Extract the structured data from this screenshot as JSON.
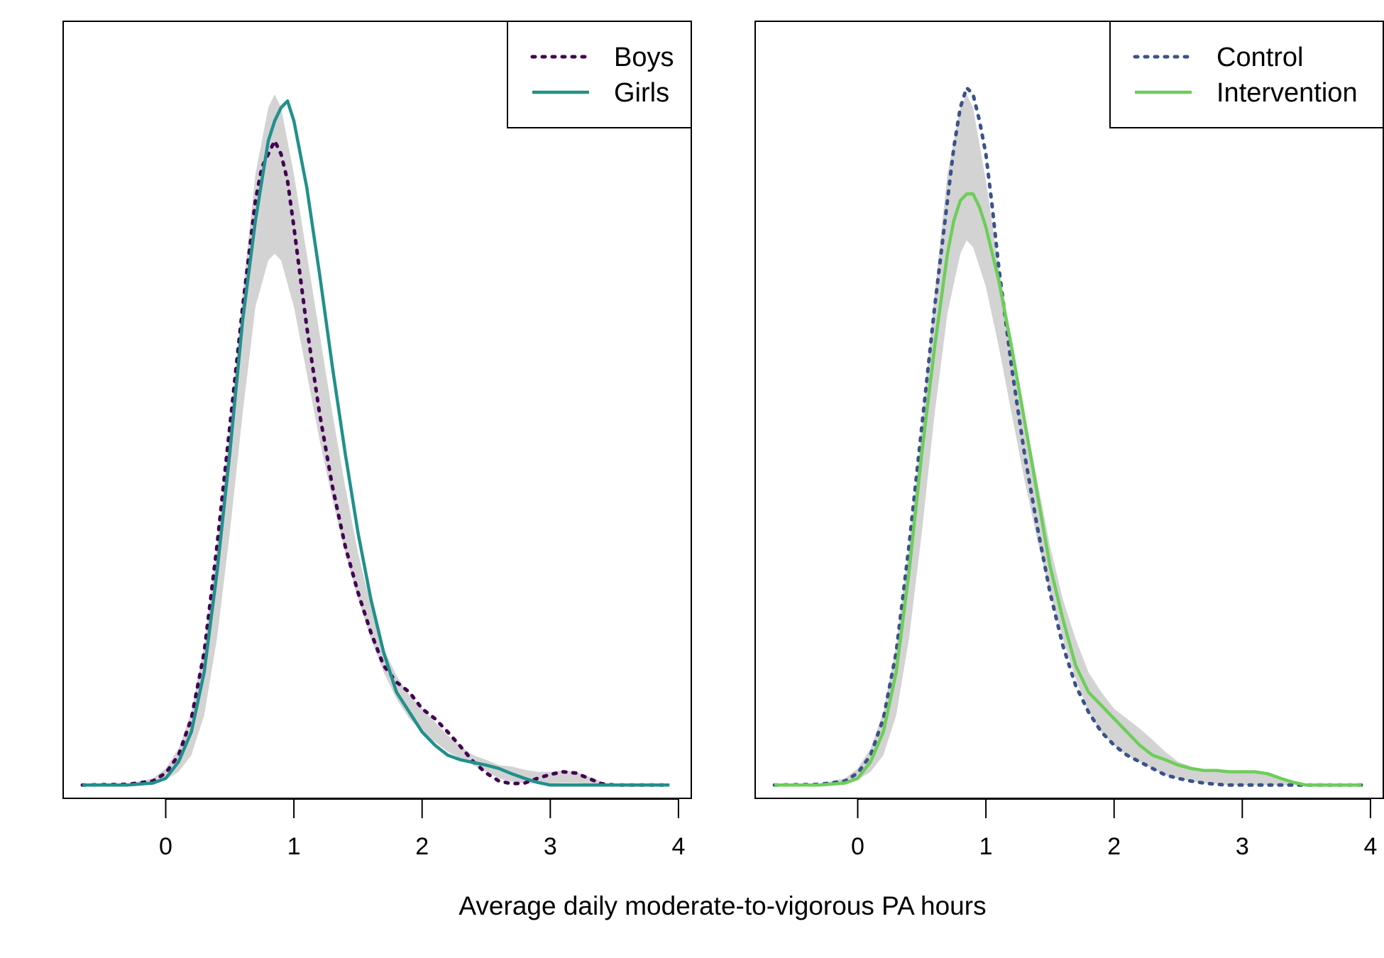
{
  "xlabel": "Average daily moderate-to-vigorous PA hours",
  "chart_data": [
    {
      "type": "line",
      "xlim": [
        -0.8,
        4.1
      ],
      "ylim": [
        -0.02,
        1.15
      ],
      "x_ticks": [
        "0",
        "1",
        "2",
        "3",
        "4"
      ],
      "legend_position": "top-right",
      "band": {
        "fill": "#d3d3d3",
        "x": [
          -0.65,
          -0.3,
          -0.1,
          0.0,
          0.1,
          0.2,
          0.3,
          0.4,
          0.5,
          0.6,
          0.7,
          0.8,
          0.85,
          0.9,
          1.0,
          1.1,
          1.2,
          1.3,
          1.4,
          1.5,
          1.6,
          1.7,
          1.8,
          1.9,
          2.0,
          2.1,
          2.2,
          2.3,
          2.4,
          2.5,
          2.6,
          2.7,
          2.8,
          2.9,
          3.0,
          3.1,
          3.2,
          3.3,
          3.4,
          3.5,
          3.93
        ],
        "lower": [
          0.0,
          0.0,
          0.002,
          0.008,
          0.02,
          0.045,
          0.105,
          0.22,
          0.38,
          0.56,
          0.72,
          0.79,
          0.8,
          0.79,
          0.72,
          0.62,
          0.52,
          0.43,
          0.35,
          0.28,
          0.22,
          0.17,
          0.13,
          0.1,
          0.08,
          0.065,
          0.05,
          0.04,
          0.03,
          0.02,
          0.01,
          0.005,
          0.003,
          0.002,
          0.002,
          0.003,
          0.003,
          0.002,
          0.0,
          0.0,
          0.0
        ],
        "upper": [
          0.0,
          0.002,
          0.01,
          0.025,
          0.055,
          0.11,
          0.21,
          0.36,
          0.54,
          0.74,
          0.92,
          1.02,
          1.04,
          1.02,
          0.92,
          0.8,
          0.68,
          0.56,
          0.45,
          0.35,
          0.27,
          0.205,
          0.165,
          0.135,
          0.115,
          0.095,
          0.075,
          0.058,
          0.045,
          0.038,
          0.03,
          0.028,
          0.023,
          0.02,
          0.02,
          0.022,
          0.02,
          0.013,
          0.005,
          0.0,
          0.0
        ]
      },
      "series": [
        {
          "name": "Boys",
          "color": "#440154",
          "style": "dotted",
          "x": [
            -0.65,
            -0.3,
            -0.1,
            0.0,
            0.1,
            0.2,
            0.3,
            0.4,
            0.5,
            0.6,
            0.7,
            0.75,
            0.8,
            0.85,
            0.9,
            0.95,
            1.0,
            1.1,
            1.2,
            1.3,
            1.4,
            1.5,
            1.6,
            1.7,
            1.8,
            1.9,
            2.0,
            2.1,
            2.2,
            2.3,
            2.4,
            2.5,
            2.6,
            2.7,
            2.8,
            2.9,
            3.0,
            3.1,
            3.2,
            3.3,
            3.4,
            3.5,
            3.93
          ],
          "y": [
            0.0,
            0.001,
            0.006,
            0.018,
            0.045,
            0.1,
            0.2,
            0.36,
            0.54,
            0.72,
            0.88,
            0.93,
            0.95,
            0.97,
            0.95,
            0.91,
            0.84,
            0.69,
            0.56,
            0.45,
            0.36,
            0.29,
            0.23,
            0.18,
            0.155,
            0.14,
            0.115,
            0.1,
            0.08,
            0.058,
            0.035,
            0.018,
            0.006,
            0.002,
            0.003,
            0.01,
            0.016,
            0.02,
            0.018,
            0.01,
            0.002,
            0.0,
            0.0
          ]
        },
        {
          "name": "Girls",
          "color": "#21908C",
          "style": "solid",
          "x": [
            -0.65,
            -0.3,
            -0.1,
            0.0,
            0.1,
            0.2,
            0.3,
            0.4,
            0.5,
            0.6,
            0.7,
            0.75,
            0.8,
            0.85,
            0.9,
            0.95,
            1.0,
            1.1,
            1.2,
            1.3,
            1.4,
            1.5,
            1.6,
            1.7,
            1.8,
            1.9,
            2.0,
            2.1,
            2.2,
            2.3,
            2.4,
            2.5,
            2.6,
            2.7,
            2.8,
            2.9,
            3.0,
            3.1,
            3.2,
            3.93
          ],
          "y": [
            0.0,
            0.0,
            0.003,
            0.01,
            0.035,
            0.08,
            0.17,
            0.32,
            0.5,
            0.7,
            0.85,
            0.91,
            0.97,
            1.0,
            1.02,
            1.03,
            1.0,
            0.9,
            0.77,
            0.63,
            0.5,
            0.38,
            0.28,
            0.2,
            0.14,
            0.11,
            0.08,
            0.06,
            0.045,
            0.038,
            0.034,
            0.03,
            0.025,
            0.017,
            0.01,
            0.004,
            0.0,
            0.0,
            0.0,
            0.0
          ]
        }
      ]
    },
    {
      "type": "line",
      "xlim": [
        -0.8,
        4.1
      ],
      "ylim": [
        -0.02,
        1.15
      ],
      "x_ticks": [
        "0",
        "1",
        "2",
        "3",
        "4"
      ],
      "legend_position": "top-right",
      "band": {
        "fill": "#d3d3d3",
        "x": [
          -0.65,
          -0.3,
          -0.1,
          0.0,
          0.1,
          0.2,
          0.3,
          0.4,
          0.5,
          0.6,
          0.7,
          0.8,
          0.85,
          0.9,
          1.0,
          1.1,
          1.2,
          1.3,
          1.4,
          1.5,
          1.6,
          1.7,
          1.8,
          1.9,
          2.0,
          2.1,
          2.2,
          2.3,
          2.4,
          2.5,
          2.6,
          2.7,
          2.8,
          2.9,
          3.0,
          3.1,
          3.2,
          3.3,
          3.4,
          3.5,
          3.93
        ],
        "lower": [
          0.0,
          0.0,
          0.002,
          0.008,
          0.02,
          0.045,
          0.105,
          0.22,
          0.38,
          0.56,
          0.71,
          0.8,
          0.82,
          0.81,
          0.75,
          0.66,
          0.56,
          0.46,
          0.37,
          0.29,
          0.22,
          0.16,
          0.11,
          0.08,
          0.06,
          0.045,
          0.035,
          0.025,
          0.015,
          0.01,
          0.006,
          0.003,
          0.002,
          0.0,
          0.0,
          0.0,
          0.0,
          0.0,
          0.0,
          0.0,
          0.0
        ],
        "upper": [
          0.0,
          0.002,
          0.01,
          0.025,
          0.055,
          0.11,
          0.21,
          0.36,
          0.54,
          0.74,
          0.92,
          1.02,
          1.04,
          1.02,
          0.91,
          0.78,
          0.67,
          0.56,
          0.46,
          0.36,
          0.28,
          0.22,
          0.17,
          0.14,
          0.115,
          0.1,
          0.085,
          0.068,
          0.05,
          0.035,
          0.028,
          0.022,
          0.02,
          0.02,
          0.02,
          0.02,
          0.018,
          0.01,
          0.004,
          0.0,
          0.0
        ]
      },
      "series": [
        {
          "name": "Control",
          "color": "#3B528B",
          "style": "dotted",
          "x": [
            -0.65,
            -0.3,
            -0.1,
            0.0,
            0.1,
            0.2,
            0.3,
            0.4,
            0.5,
            0.6,
            0.7,
            0.75,
            0.8,
            0.85,
            0.9,
            0.95,
            1.0,
            1.05,
            1.1,
            1.2,
            1.3,
            1.4,
            1.5,
            1.6,
            1.7,
            1.8,
            1.9,
            2.0,
            2.1,
            2.2,
            2.3,
            2.4,
            2.5,
            2.6,
            2.7,
            2.8,
            2.9,
            3.0,
            3.2,
            3.4,
            3.5,
            3.93
          ],
          "y": [
            0.0,
            0.001,
            0.006,
            0.018,
            0.045,
            0.1,
            0.2,
            0.36,
            0.54,
            0.72,
            0.88,
            0.96,
            1.02,
            1.05,
            1.04,
            1.0,
            0.95,
            0.87,
            0.78,
            0.63,
            0.5,
            0.39,
            0.29,
            0.21,
            0.15,
            0.11,
            0.08,
            0.06,
            0.045,
            0.035,
            0.025,
            0.015,
            0.01,
            0.006,
            0.003,
            0.001,
            0.0,
            0.0,
            0.0,
            0.0,
            0.0,
            0.0
          ]
        },
        {
          "name": "Intervention",
          "color": "#6CCE59",
          "style": "solid",
          "x": [
            -0.65,
            -0.3,
            -0.1,
            0.0,
            0.1,
            0.2,
            0.3,
            0.4,
            0.5,
            0.6,
            0.7,
            0.75,
            0.8,
            0.85,
            0.9,
            0.95,
            1.0,
            1.1,
            1.2,
            1.3,
            1.4,
            1.5,
            1.6,
            1.7,
            1.8,
            1.9,
            2.0,
            2.1,
            2.2,
            2.3,
            2.4,
            2.5,
            2.6,
            2.7,
            2.8,
            2.9,
            3.0,
            3.1,
            3.2,
            3.3,
            3.4,
            3.5,
            3.93
          ],
          "y": [
            0.0,
            0.0,
            0.003,
            0.01,
            0.035,
            0.08,
            0.17,
            0.32,
            0.5,
            0.66,
            0.8,
            0.85,
            0.88,
            0.89,
            0.89,
            0.87,
            0.84,
            0.76,
            0.66,
            0.55,
            0.44,
            0.33,
            0.25,
            0.18,
            0.14,
            0.12,
            0.1,
            0.08,
            0.06,
            0.045,
            0.038,
            0.03,
            0.025,
            0.022,
            0.022,
            0.02,
            0.02,
            0.02,
            0.017,
            0.01,
            0.004,
            0.0,
            0.0
          ]
        }
      ]
    }
  ]
}
